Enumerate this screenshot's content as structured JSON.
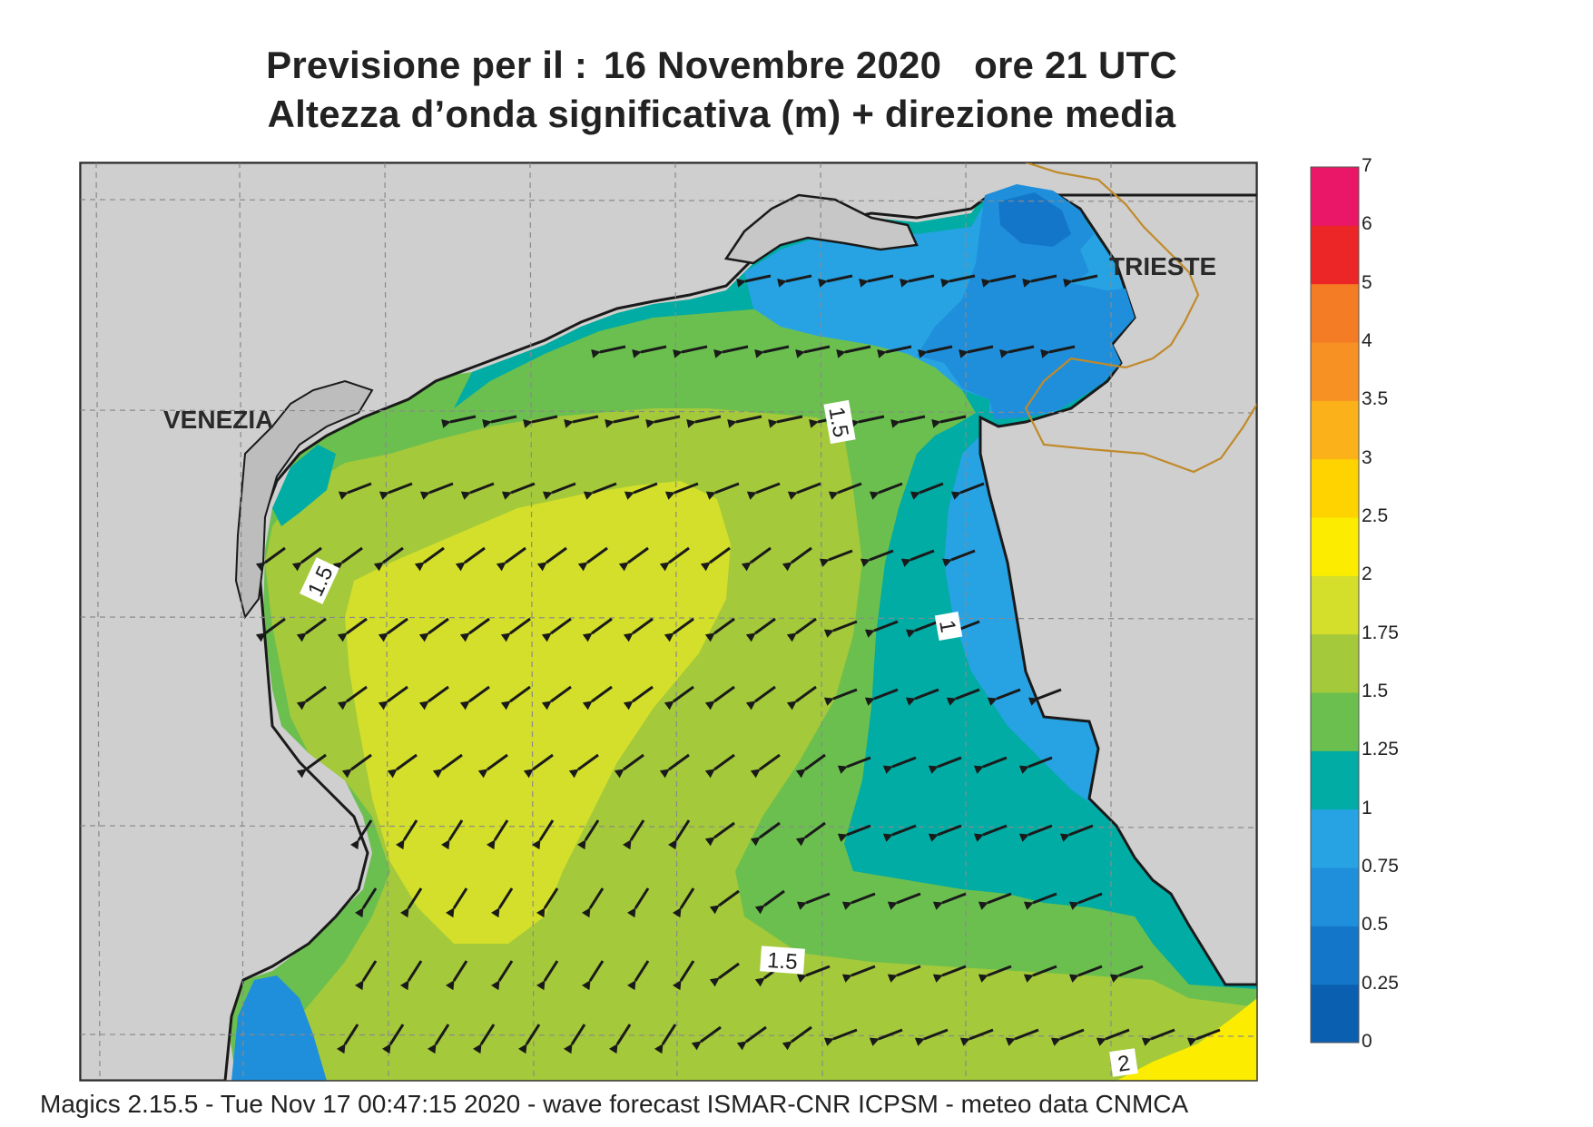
{
  "title": {
    "line1_prefix": "Previsione per il  :",
    "line1_date": "16 Novembre  2020",
    "line1_time": "ore 21 UTC",
    "line2": "Altezza d’onda significativa (m) + direzione media"
  },
  "map": {
    "city_labels": [
      "VENEZIA",
      "TRIESTE"
    ],
    "contour_labels": [
      "1.5",
      "1.5",
      "1",
      "1.5",
      "2"
    ],
    "mean_wave_direction": "towards west-southwest",
    "colors": {
      "land": "#cfcfcf",
      "land_dark": "#c4c4c4",
      "border": "#c08a2a",
      "coast": "#1a1a1a"
    }
  },
  "colorbar": {
    "levels": [
      "0",
      "0.25",
      "0.5",
      "0.75",
      "1",
      "1.25",
      "1.5",
      "1.75",
      "2",
      "2.5",
      "3",
      "3.5",
      "4",
      "5",
      "6",
      "7"
    ],
    "colors": [
      "#0b5fb0",
      "#1476c8",
      "#1f8fdb",
      "#27a3e4",
      "#00aca4",
      "#6bbf4f",
      "#a4c93a",
      "#d3df2a",
      "#fbec00",
      "#fed300",
      "#fbb11a",
      "#f79124",
      "#f37c25",
      "#ec2527",
      "#ea1668"
    ]
  },
  "footer": "Magics 2.15.5 - Tue Nov 17 00:47:15 2020 - wave forecast  ISMAR-CNR  ICPSM - meteo data   CNMCA"
}
